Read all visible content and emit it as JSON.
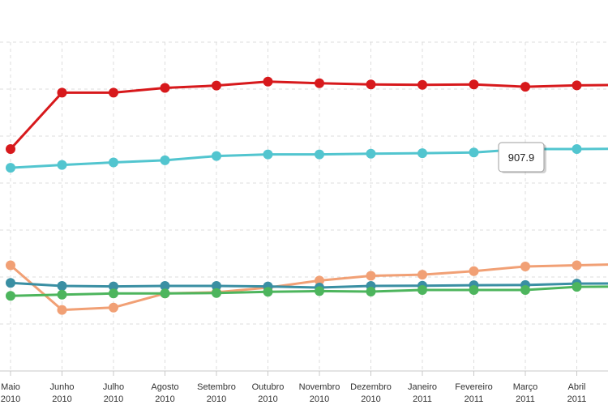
{
  "chart_data": {
    "type": "line",
    "title": "",
    "xlabel": "",
    "ylabel": "",
    "ylim": [
      0,
      1400
    ],
    "grid": true,
    "legend": "none",
    "categories": [
      [
        "Maio",
        "2010"
      ],
      [
        "Junho",
        "2010"
      ],
      [
        "Julho",
        "2010"
      ],
      [
        "Agosto",
        "2010"
      ],
      [
        "Setembro",
        "2010"
      ],
      [
        "Outubro",
        "2010"
      ],
      [
        "Novembro",
        "2010"
      ],
      [
        "Dezembro",
        "2010"
      ],
      [
        "Janeiro",
        "2011"
      ],
      [
        "Fevereiro",
        "2011"
      ],
      [
        "Março",
        "2011"
      ],
      [
        "Abril",
        "2011"
      ],
      [
        "",
        ""
      ]
    ],
    "series": [
      {
        "color": "#d7191c",
        "values": [
          945,
          1185,
          1185,
          1205,
          1215,
          1232,
          1225,
          1220,
          1218,
          1220,
          1210,
          1216,
          1218
        ]
      },
      {
        "color": "#52c5cf",
        "values": [
          865,
          877,
          888,
          897,
          915,
          922,
          922,
          925,
          927,
          930,
          945,
          945,
          946
        ]
      },
      {
        "color": "#f1a075",
        "values": [
          450,
          260,
          270,
          330,
          335,
          355,
          385,
          405,
          410,
          425,
          445,
          450,
          455
        ]
      },
      {
        "color": "#3a8fa3",
        "values": [
          375,
          362,
          360,
          362,
          362,
          360,
          355,
          362,
          363,
          365,
          366,
          372,
          373
        ]
      },
      {
        "color": "#4db55d",
        "values": [
          320,
          325,
          330,
          330,
          332,
          337,
          340,
          338,
          345,
          345,
          345,
          358,
          360
        ]
      }
    ],
    "tooltip": {
      "text": "907.9"
    }
  }
}
